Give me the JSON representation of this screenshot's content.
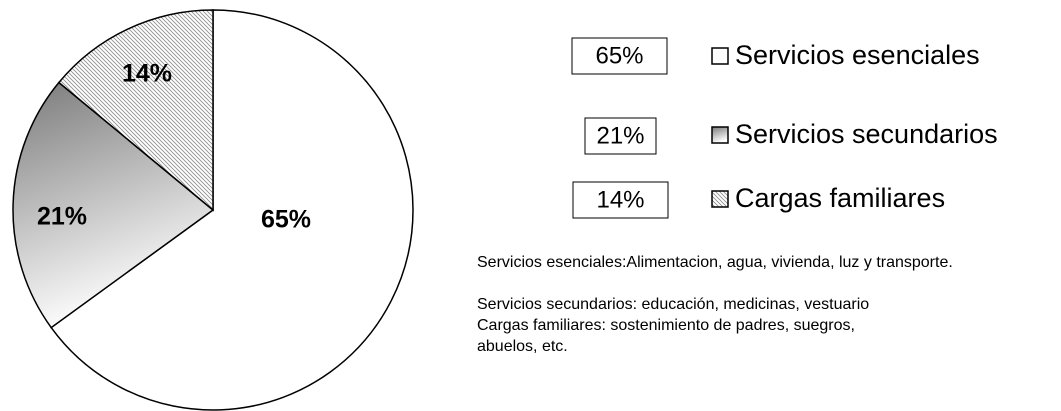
{
  "chart_data": {
    "type": "pie",
    "categories": [
      "Servicios esenciales",
      "Servicios secundarios",
      "Cargas familiares"
    ],
    "values": [
      65,
      21,
      14
    ],
    "value_labels": [
      "65%",
      "21%",
      "14%"
    ],
    "colors": [
      "#ffffff",
      "#7a7a7a",
      "#8c8c8c"
    ],
    "notes": [
      "Servicios esenciales:Alimentacion, agua, vivienda, luz y transporte.",
      "Servicios secundarios: educación, medicinas, vestuario",
      "Cargas familiares: sostenimiento de padres, suegros, abuelos, etc."
    ]
  }
}
